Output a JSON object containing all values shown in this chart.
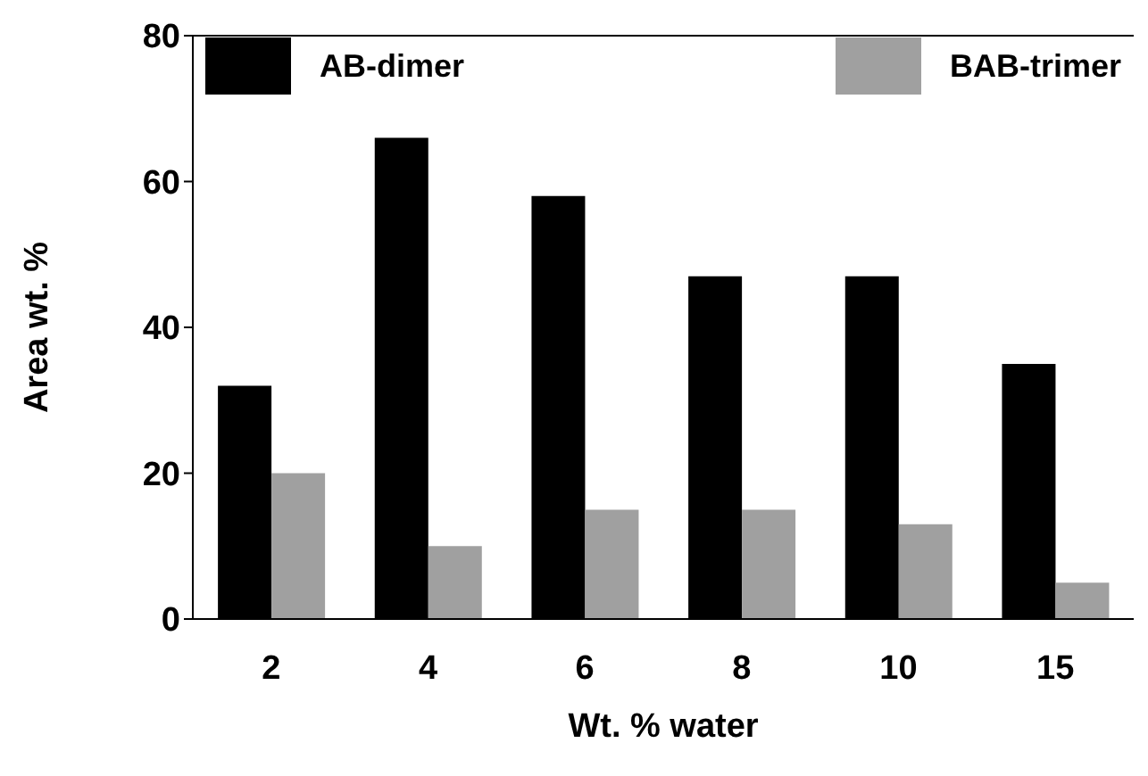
{
  "chart_data": {
    "type": "bar",
    "xlabel": "Wt. % water",
    "ylabel": "Area wt. %",
    "categories": [
      "2",
      "4",
      "6",
      "8",
      "10",
      "15"
    ],
    "series": [
      {
        "name": "AB-dimer",
        "color": "#000000",
        "values": [
          32,
          66,
          58,
          47,
          47,
          35
        ]
      },
      {
        "name": "BAB-trimer",
        "color": "#a0a0a0",
        "values": [
          20,
          10,
          15,
          15,
          13,
          5
        ]
      }
    ],
    "ylim": [
      0,
      80
    ],
    "yticks": [
      0,
      20,
      40,
      60,
      80
    ],
    "legend": "top"
  }
}
